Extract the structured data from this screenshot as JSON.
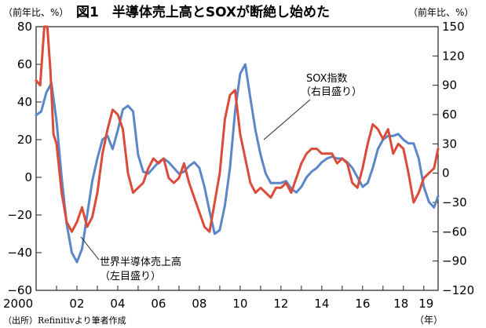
{
  "chart_data": {
    "type": "line",
    "title": "図1　半導体売上高とSOXが断絶し始めた",
    "left_axis": {
      "unit_label": "（前年比、%）",
      "ylim": [
        -60,
        80
      ],
      "ticks": [
        "80",
        "60",
        "40",
        "20",
        "0",
        "−20",
        "−40",
        "−60"
      ]
    },
    "right_axis": {
      "unit_label": "（前年比、%）",
      "ylim": [
        -120,
        150
      ],
      "ticks": [
        "150",
        "120",
        "90",
        "60",
        "30",
        "0",
        "−30",
        "−60",
        "−90",
        "−120"
      ]
    },
    "x_axis": {
      "unit_label": "（年）",
      "xlim": [
        2000.0,
        2019.7
      ],
      "ticks": [
        {
          "value": 2000,
          "label": "2000"
        },
        {
          "value": 2002,
          "label": "02"
        },
        {
          "value": 2004,
          "label": "04"
        },
        {
          "value": 2006,
          "label": "06"
        },
        {
          "value": 2008,
          "label": "08"
        },
        {
          "value": 2010,
          "label": "10"
        },
        {
          "value": 2012,
          "label": "12"
        },
        {
          "value": 2014,
          "label": "14"
        },
        {
          "value": 2016,
          "label": "16"
        },
        {
          "value": 2018,
          "label": "18"
        },
        {
          "value": 2019,
          "label": "19"
        }
      ]
    },
    "grid": false,
    "series": [
      {
        "name": "世界半導体売上高",
        "sub_label": "（左目盛り）",
        "axis": "left",
        "color": "#5b87c8",
        "x": [
          2000.0,
          2000.25,
          2000.5,
          2000.75,
          2001.0,
          2001.25,
          2001.5,
          2001.75,
          2002.0,
          2002.25,
          2002.5,
          2002.75,
          2003.0,
          2003.25,
          2003.5,
          2003.75,
          2004.0,
          2004.25,
          2004.5,
          2004.75,
          2005.0,
          2005.25,
          2005.5,
          2005.75,
          2006.0,
          2006.25,
          2006.5,
          2006.75,
          2007.0,
          2007.25,
          2007.5,
          2007.75,
          2008.0,
          2008.25,
          2008.5,
          2008.75,
          2009.0,
          2009.25,
          2009.5,
          2009.75,
          2010.0,
          2010.25,
          2010.5,
          2010.75,
          2011.0,
          2011.25,
          2011.5,
          2011.75,
          2012.0,
          2012.25,
          2012.5,
          2012.75,
          2013.0,
          2013.25,
          2013.5,
          2013.75,
          2014.0,
          2014.25,
          2014.5,
          2014.75,
          2015.0,
          2015.25,
          2015.5,
          2015.75,
          2016.0,
          2016.25,
          2016.5,
          2016.75,
          2017.0,
          2017.25,
          2017.5,
          2017.75,
          2018.0,
          2018.25,
          2018.5,
          2018.75,
          2019.0,
          2019.25,
          2019.5,
          2019.7
        ],
        "values": [
          33,
          35,
          45,
          50,
          30,
          0,
          -25,
          -40,
          -45,
          -38,
          -20,
          -2,
          10,
          20,
          22,
          15,
          25,
          36,
          38,
          35,
          12,
          3,
          2,
          5,
          8,
          10,
          8,
          5,
          2,
          3,
          6,
          8,
          5,
          -5,
          -18,
          -30,
          -28,
          -15,
          5,
          35,
          55,
          60,
          42,
          25,
          12,
          2,
          -3,
          -3,
          -3,
          -2,
          -6,
          -8,
          -5,
          0,
          3,
          5,
          8,
          10,
          11,
          10,
          10,
          8,
          5,
          0,
          -5,
          -3,
          5,
          15,
          20,
          22,
          22,
          23,
          20,
          18,
          18,
          10,
          -5,
          -13,
          -16,
          -10
        ]
      },
      {
        "name": "SOX指数",
        "sub_label": "（右目盛り）",
        "axis": "right",
        "color": "#dc4a3a",
        "x": [
          2000.0,
          2000.2,
          2000.4,
          2000.55,
          2000.7,
          2000.85,
          2001.0,
          2001.25,
          2001.5,
          2001.75,
          2002.0,
          2002.25,
          2002.5,
          2002.75,
          2003.0,
          2003.25,
          2003.5,
          2003.75,
          2004.0,
          2004.25,
          2004.5,
          2004.75,
          2005.0,
          2005.25,
          2005.5,
          2005.75,
          2006.0,
          2006.25,
          2006.5,
          2006.75,
          2007.0,
          2007.25,
          2007.5,
          2007.75,
          2008.0,
          2008.25,
          2008.5,
          2008.75,
          2009.0,
          2009.25,
          2009.5,
          2009.75,
          2010.0,
          2010.25,
          2010.5,
          2010.75,
          2011.0,
          2011.25,
          2011.5,
          2011.75,
          2012.0,
          2012.25,
          2012.5,
          2012.75,
          2013.0,
          2013.25,
          2013.5,
          2013.75,
          2014.0,
          2014.25,
          2014.5,
          2014.75,
          2015.0,
          2015.25,
          2015.5,
          2015.75,
          2016.0,
          2016.25,
          2016.5,
          2016.75,
          2017.0,
          2017.25,
          2017.5,
          2017.75,
          2018.0,
          2018.25,
          2018.5,
          2018.75,
          2019.0,
          2019.25,
          2019.5,
          2019.7
        ],
        "values": [
          95,
          90,
          150,
          160,
          105,
          40,
          30,
          -20,
          -50,
          -60,
          -50,
          -35,
          -55,
          -45,
          -20,
          20,
          45,
          65,
          60,
          45,
          0,
          -20,
          -15,
          -10,
          5,
          15,
          10,
          15,
          -5,
          -10,
          -5,
          10,
          -10,
          -25,
          -40,
          -55,
          -60,
          -30,
          0,
          55,
          80,
          85,
          40,
          15,
          -10,
          -20,
          -15,
          -20,
          -25,
          -15,
          -15,
          -10,
          -20,
          -5,
          10,
          20,
          25,
          25,
          20,
          20,
          20,
          10,
          15,
          10,
          -10,
          -15,
          5,
          30,
          50,
          45,
          35,
          45,
          20,
          30,
          25,
          0,
          -30,
          -20,
          -5,
          0,
          5,
          25
        ]
      }
    ],
    "annotations": {
      "sox_label": "SOX指数",
      "sox_sub": "（右目盛り）",
      "sales_label": "世界半導体売上高",
      "sales_sub": "（左目盛り）"
    },
    "source": "（出所）Refinitivより筆者作成"
  }
}
